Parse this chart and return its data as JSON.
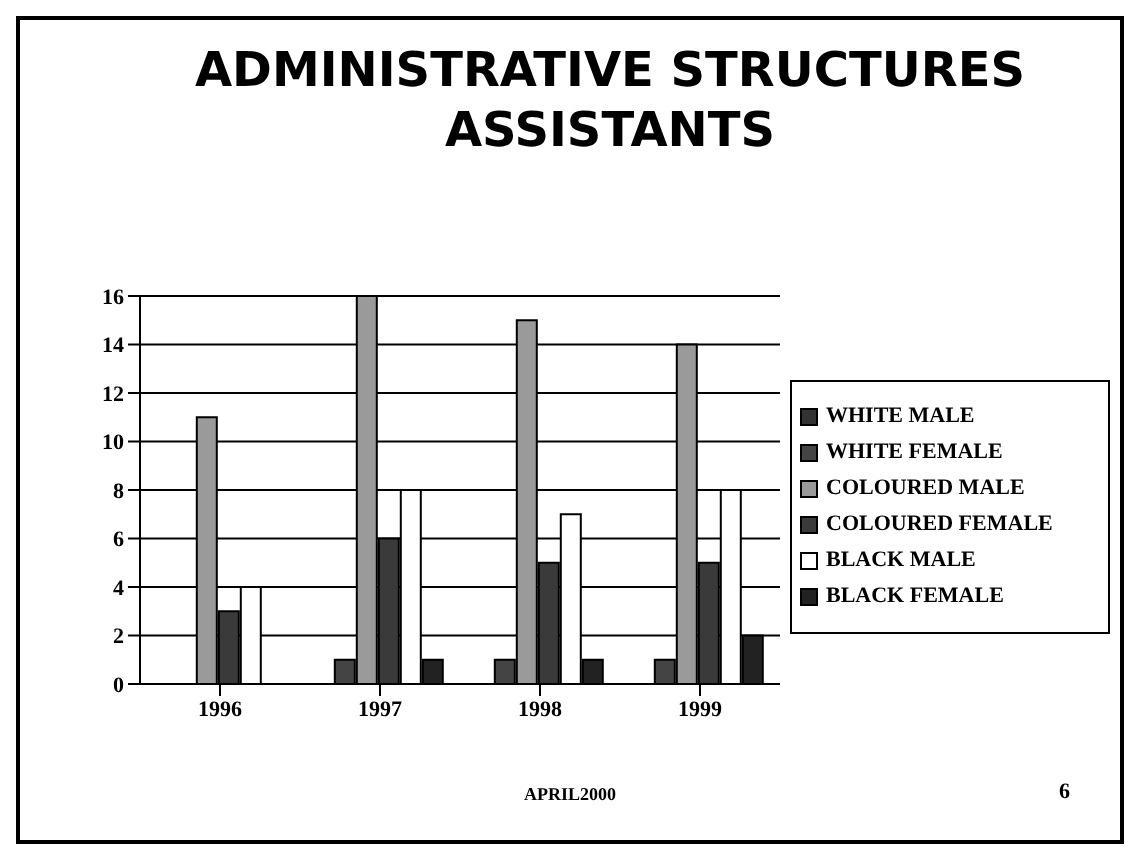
{
  "chart_data": {
    "type": "bar",
    "title": "ADMINISTRATIVE STRUCTURES ASSISTANTS",
    "categories": [
      "1996",
      "1997",
      "1998",
      "1999"
    ],
    "series": [
      {
        "name": "WHITE MALE",
        "color": "#333333",
        "values": [
          0,
          0,
          0,
          0
        ]
      },
      {
        "name": "WHITE FEMALE",
        "color": "#444444",
        "values": [
          0,
          1,
          1,
          1
        ]
      },
      {
        "name": "COLOURED MALE",
        "color": "#9a9a9a",
        "values": [
          11,
          16,
          15,
          14
        ]
      },
      {
        "name": "COLOURED FEMALE",
        "color": "#3a3a3a",
        "values": [
          3,
          6,
          5,
          5
        ]
      },
      {
        "name": "BLACK MALE",
        "color": "#ffffff",
        "values": [
          4,
          8,
          7,
          8
        ]
      },
      {
        "name": "BLACK FEMALE",
        "color": "#222222",
        "values": [
          0,
          1,
          1,
          2
        ]
      }
    ],
    "ylim": [
      0,
      16
    ],
    "yticks": [
      0,
      2,
      4,
      6,
      8,
      10,
      12,
      14,
      16
    ],
    "grid": "y",
    "legend": "right",
    "annotations": [
      "APRIL2000",
      "6"
    ]
  }
}
